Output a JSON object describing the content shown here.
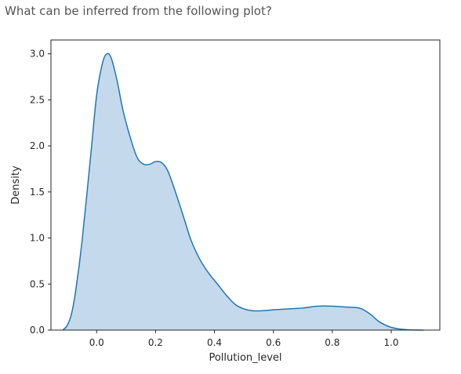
{
  "question": "What can be inferred from the following plot?",
  "chart_data": {
    "type": "area",
    "subtype": "kde-density",
    "xlabel": "Pollution_level",
    "ylabel": "Density",
    "xlim": [
      -0.155,
      1.165
    ],
    "ylim": [
      0,
      3.15
    ],
    "x_ticks": [
      0.0,
      0.2,
      0.4,
      0.6,
      0.8,
      1.0
    ],
    "y_ticks": [
      0.0,
      0.5,
      1.0,
      1.5,
      2.0,
      2.5,
      3.0
    ],
    "x_tick_labels": [
      "0.0",
      "0.2",
      "0.4",
      "0.6",
      "0.8",
      "1.0"
    ],
    "y_tick_labels": [
      "0.0",
      "0.5",
      "1.0",
      "1.5",
      "2.0",
      "2.5",
      "3.0"
    ],
    "grid": false,
    "line_color": "#1f77b4",
    "fill_color": "#c5d9ec",
    "x": [
      -0.115,
      -0.1,
      -0.085,
      -0.07,
      -0.05,
      -0.02,
      0.0,
      0.02,
      0.035,
      0.05,
      0.07,
      0.09,
      0.12,
      0.14,
      0.16,
      0.18,
      0.2,
      0.22,
      0.24,
      0.26,
      0.28,
      0.3,
      0.32,
      0.35,
      0.38,
      0.41,
      0.44,
      0.47,
      0.5,
      0.53,
      0.56,
      0.6,
      0.65,
      0.7,
      0.75,
      0.8,
      0.85,
      0.88,
      0.9,
      0.93,
      0.96,
      1.0,
      1.05,
      1.11
    ],
    "y": [
      0.0,
      0.05,
      0.18,
      0.45,
      0.95,
      1.9,
      2.55,
      2.9,
      3.0,
      2.95,
      2.7,
      2.38,
      2.03,
      1.86,
      1.8,
      1.8,
      1.83,
      1.82,
      1.74,
      1.57,
      1.38,
      1.18,
      0.98,
      0.77,
      0.62,
      0.5,
      0.38,
      0.28,
      0.23,
      0.21,
      0.21,
      0.22,
      0.23,
      0.24,
      0.26,
      0.26,
      0.25,
      0.245,
      0.23,
      0.17,
      0.09,
      0.03,
      0.005,
      0.0
    ]
  }
}
